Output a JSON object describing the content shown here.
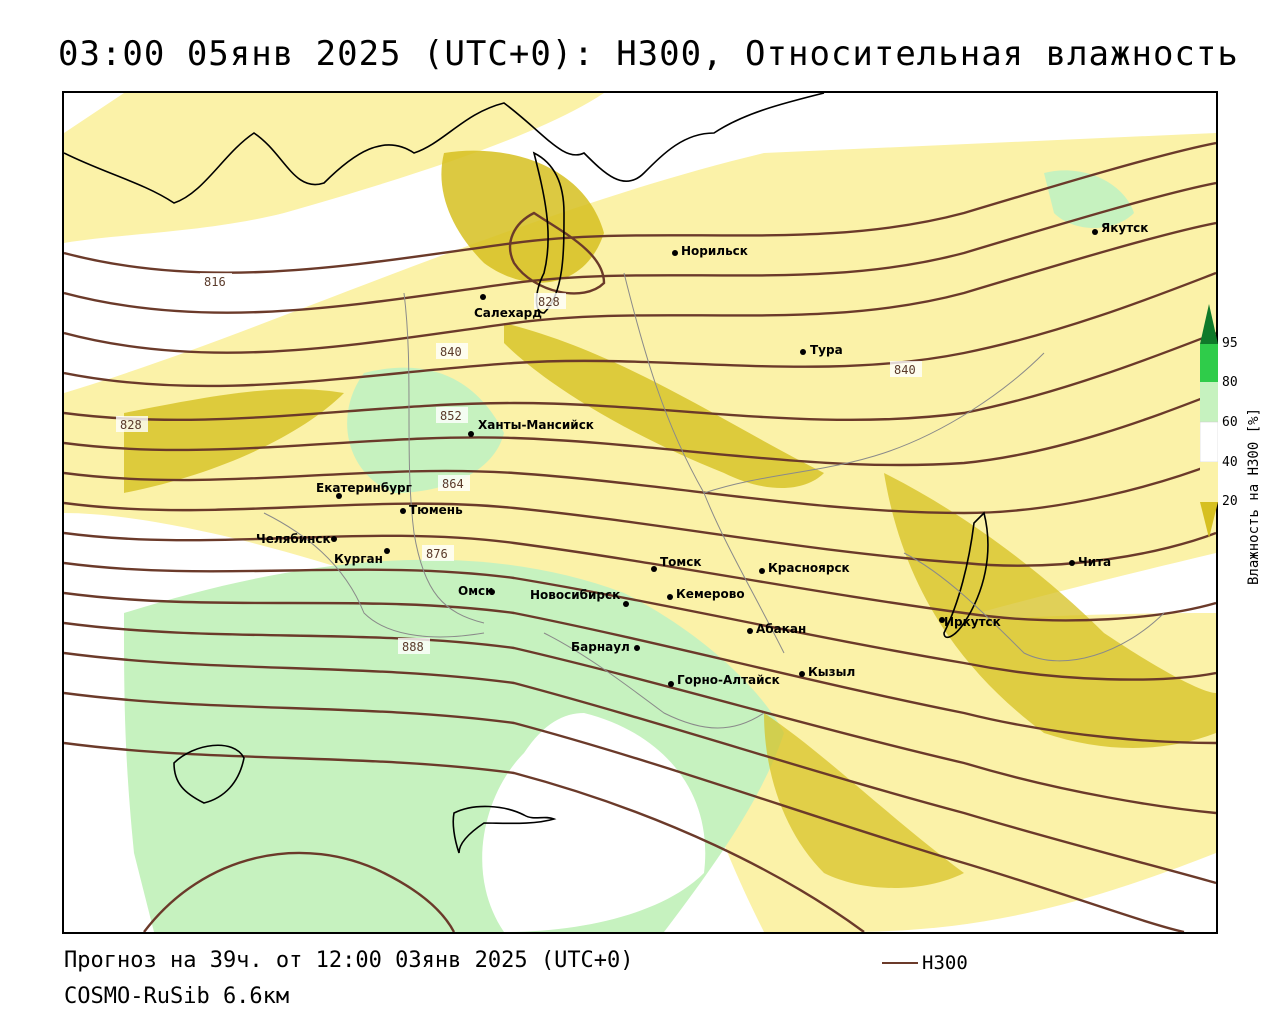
{
  "title": "03:00 05янв 2025 (UTC+0): H300, Относительная влажность",
  "forecast_line": "Прогноз на 39ч. от 12:00 03янв 2025 (UTC+0)",
  "model_line": "COSMO-RuSib 6.6км",
  "series_legend": {
    "label": "H300",
    "color": "#6b3a2a"
  },
  "colorbar": {
    "title": "Влажность на H300 [%]",
    "ticks": [
      "95",
      "80",
      "60",
      "40",
      "20"
    ],
    "colors": {
      "c95": "#0f7a2a",
      "c80": "#2fcc4a",
      "c60": "#c6f2bf",
      "c40": "#ffffff",
      "c20": "#fbf2a8",
      "c0": "#d6c020"
    }
  },
  "contour_labels": [
    "816",
    "828",
    "828",
    "840",
    "840",
    "852",
    "864",
    "876",
    "888"
  ],
  "cities": [
    "Якутск",
    "Норильск",
    "Салехард",
    "Тура",
    "Ханты-Мансийск",
    "Екатеринбург",
    "Тюмень",
    "Челябинск",
    "Курган",
    "Омск",
    "Новосибирск",
    "Томск",
    "Кемерово",
    "Красноярск",
    "Чита",
    "Иркутск",
    "Абакан",
    "Барнаул",
    "Кызыл",
    "Горно-Алтайск"
  ]
}
